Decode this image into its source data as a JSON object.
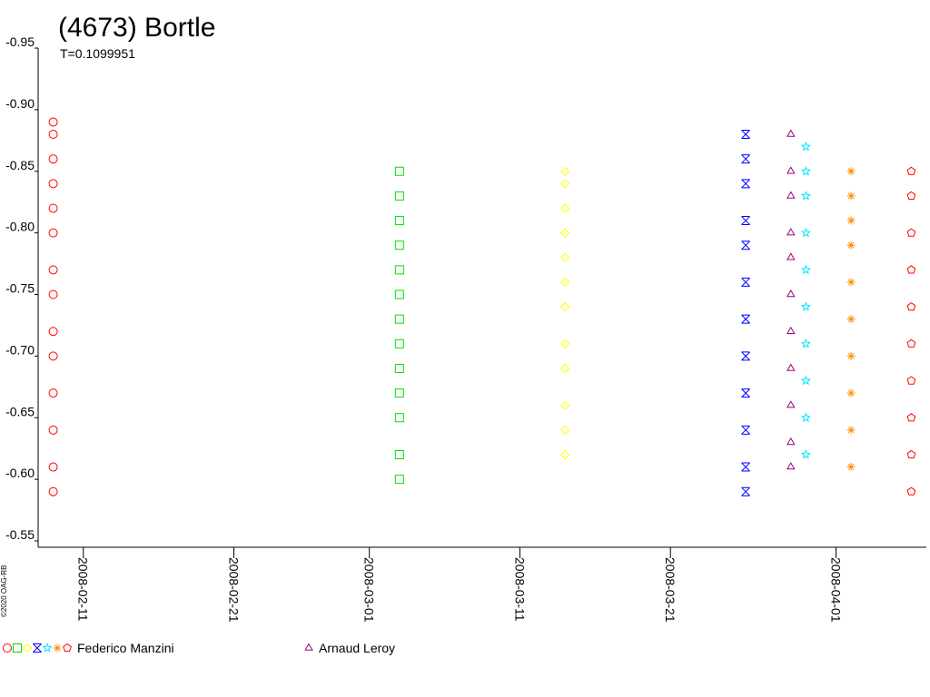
{
  "chart_data": {
    "type": "scatter",
    "title": "(4673) Bortle",
    "subtitle": "T=0.1099951",
    "credit": "©2020 OAG-RB",
    "ylim": [
      -0.95,
      -0.55
    ],
    "yticks": [
      -0.95,
      {
        "value": -0.9,
        "label": "-0.90"
      },
      -0.85,
      {
        "value": -0.8,
        "label": "-0.80"
      },
      -0.75,
      {
        "value": -0.7,
        "label": "-0.70"
      },
      -0.65,
      {
        "value": -0.6,
        "label": "-0.60"
      },
      -0.55
    ],
    "xlim": [
      "2008-02-08",
      "2008-04-07"
    ],
    "xticks": [
      "2008-02-11",
      "2008-02-21",
      "2008-03-01",
      "2008-03-11",
      "2008-03-21",
      "2008-04-01"
    ],
    "series": [
      {
        "name": "Federico Manzini",
        "nights": [
          {
            "x": "2008-02-09",
            "color": "#ff0000",
            "marker": "circle",
            "values": [
              -0.59,
              -0.61,
              -0.64,
              -0.67,
              -0.7,
              -0.72,
              -0.75,
              -0.77,
              -0.8,
              -0.82,
              -0.84,
              -0.86,
              -0.88,
              -0.89
            ]
          },
          {
            "x": "2008-03-03",
            "color": "#00e000",
            "marker": "square",
            "values": [
              -0.6,
              -0.62,
              -0.65,
              -0.67,
              -0.69,
              -0.71,
              -0.73,
              -0.75,
              -0.77,
              -0.79,
              -0.81,
              -0.83,
              -0.85
            ]
          },
          {
            "x": "2008-03-14",
            "color": "#ffff00",
            "marker": "diamond",
            "values": [
              -0.62,
              -0.64,
              -0.66,
              -0.69,
              -0.71,
              -0.74,
              -0.76,
              -0.78,
              -0.8,
              -0.82,
              -0.84,
              -0.85
            ]
          },
          {
            "x": "2008-03-26",
            "color": "#0000ff",
            "marker": "xbox",
            "values": [
              -0.59,
              -0.61,
              -0.64,
              -0.67,
              -0.7,
              -0.73,
              -0.76,
              -0.79,
              -0.81,
              -0.84,
              -0.86,
              -0.88
            ]
          },
          {
            "x": "2008-03-30",
            "color": "#00e5ff",
            "marker": "star",
            "values": [
              -0.62,
              -0.65,
              -0.68,
              -0.71,
              -0.74,
              -0.77,
              -0.8,
              -0.83,
              -0.85,
              -0.87
            ]
          },
          {
            "x": "2008-04-02",
            "color": "#ff8c00",
            "marker": "asterisk",
            "values": [
              -0.61,
              -0.64,
              -0.67,
              -0.7,
              -0.73,
              -0.76,
              -0.79,
              -0.81,
              -0.83,
              -0.85
            ]
          },
          {
            "x": "2008-04-06",
            "color": "#ff0000",
            "marker": "pentagon",
            "values": [
              -0.59,
              -0.62,
              -0.65,
              -0.68,
              -0.71,
              -0.74,
              -0.77,
              -0.8,
              -0.83,
              -0.85
            ]
          }
        ]
      },
      {
        "name": "Arnaud Leroy",
        "nights": [
          {
            "x": "2008-03-29",
            "color": "#a0007a",
            "marker": "triangle",
            "values": [
              -0.61,
              -0.63,
              -0.66,
              -0.69,
              -0.72,
              -0.75,
              -0.78,
              -0.8,
              -0.83,
              -0.85,
              -0.88
            ]
          }
        ]
      }
    ]
  }
}
